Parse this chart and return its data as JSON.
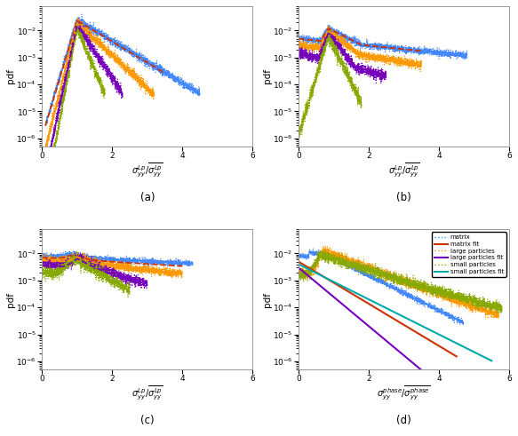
{
  "panels": [
    "(a)",
    "(b)",
    "(c)",
    "(d)"
  ],
  "xlabel_abc": "$\\sigma_{yy}^{Lp}/\\overline{\\sigma_{yy}^{Lp}}$",
  "xlabel_d": "$\\sigma_{yy}^{phase}/\\overline{\\sigma_{yy}^{phase}}$",
  "ylabel": "pdf",
  "colors": {
    "blue": "#4488FF",
    "red": "#CC3300",
    "orange": "#FF9900",
    "purple": "#7700BB",
    "green": "#88AA00",
    "cyan": "#00AAAA"
  },
  "legend_entries": [
    {
      "label": "matrix",
      "color": "#4488FF",
      "ls": "dotted",
      "lw": 1.0
    },
    {
      "label": "matrix fit",
      "color": "#CC3300",
      "ls": "solid",
      "lw": 1.5
    },
    {
      "label": "large particles",
      "color": "#FF9900",
      "ls": "dotted",
      "lw": 1.0
    },
    {
      "label": "large particles fit",
      "color": "#7700BB",
      "ls": "solid",
      "lw": 1.5
    },
    {
      "label": "small particles",
      "color": "#88AA00",
      "ls": "dotted",
      "lw": 1.0
    },
    {
      "label": "small particles fit",
      "color": "#00AAAA",
      "ls": "solid",
      "lw": 1.5
    }
  ]
}
